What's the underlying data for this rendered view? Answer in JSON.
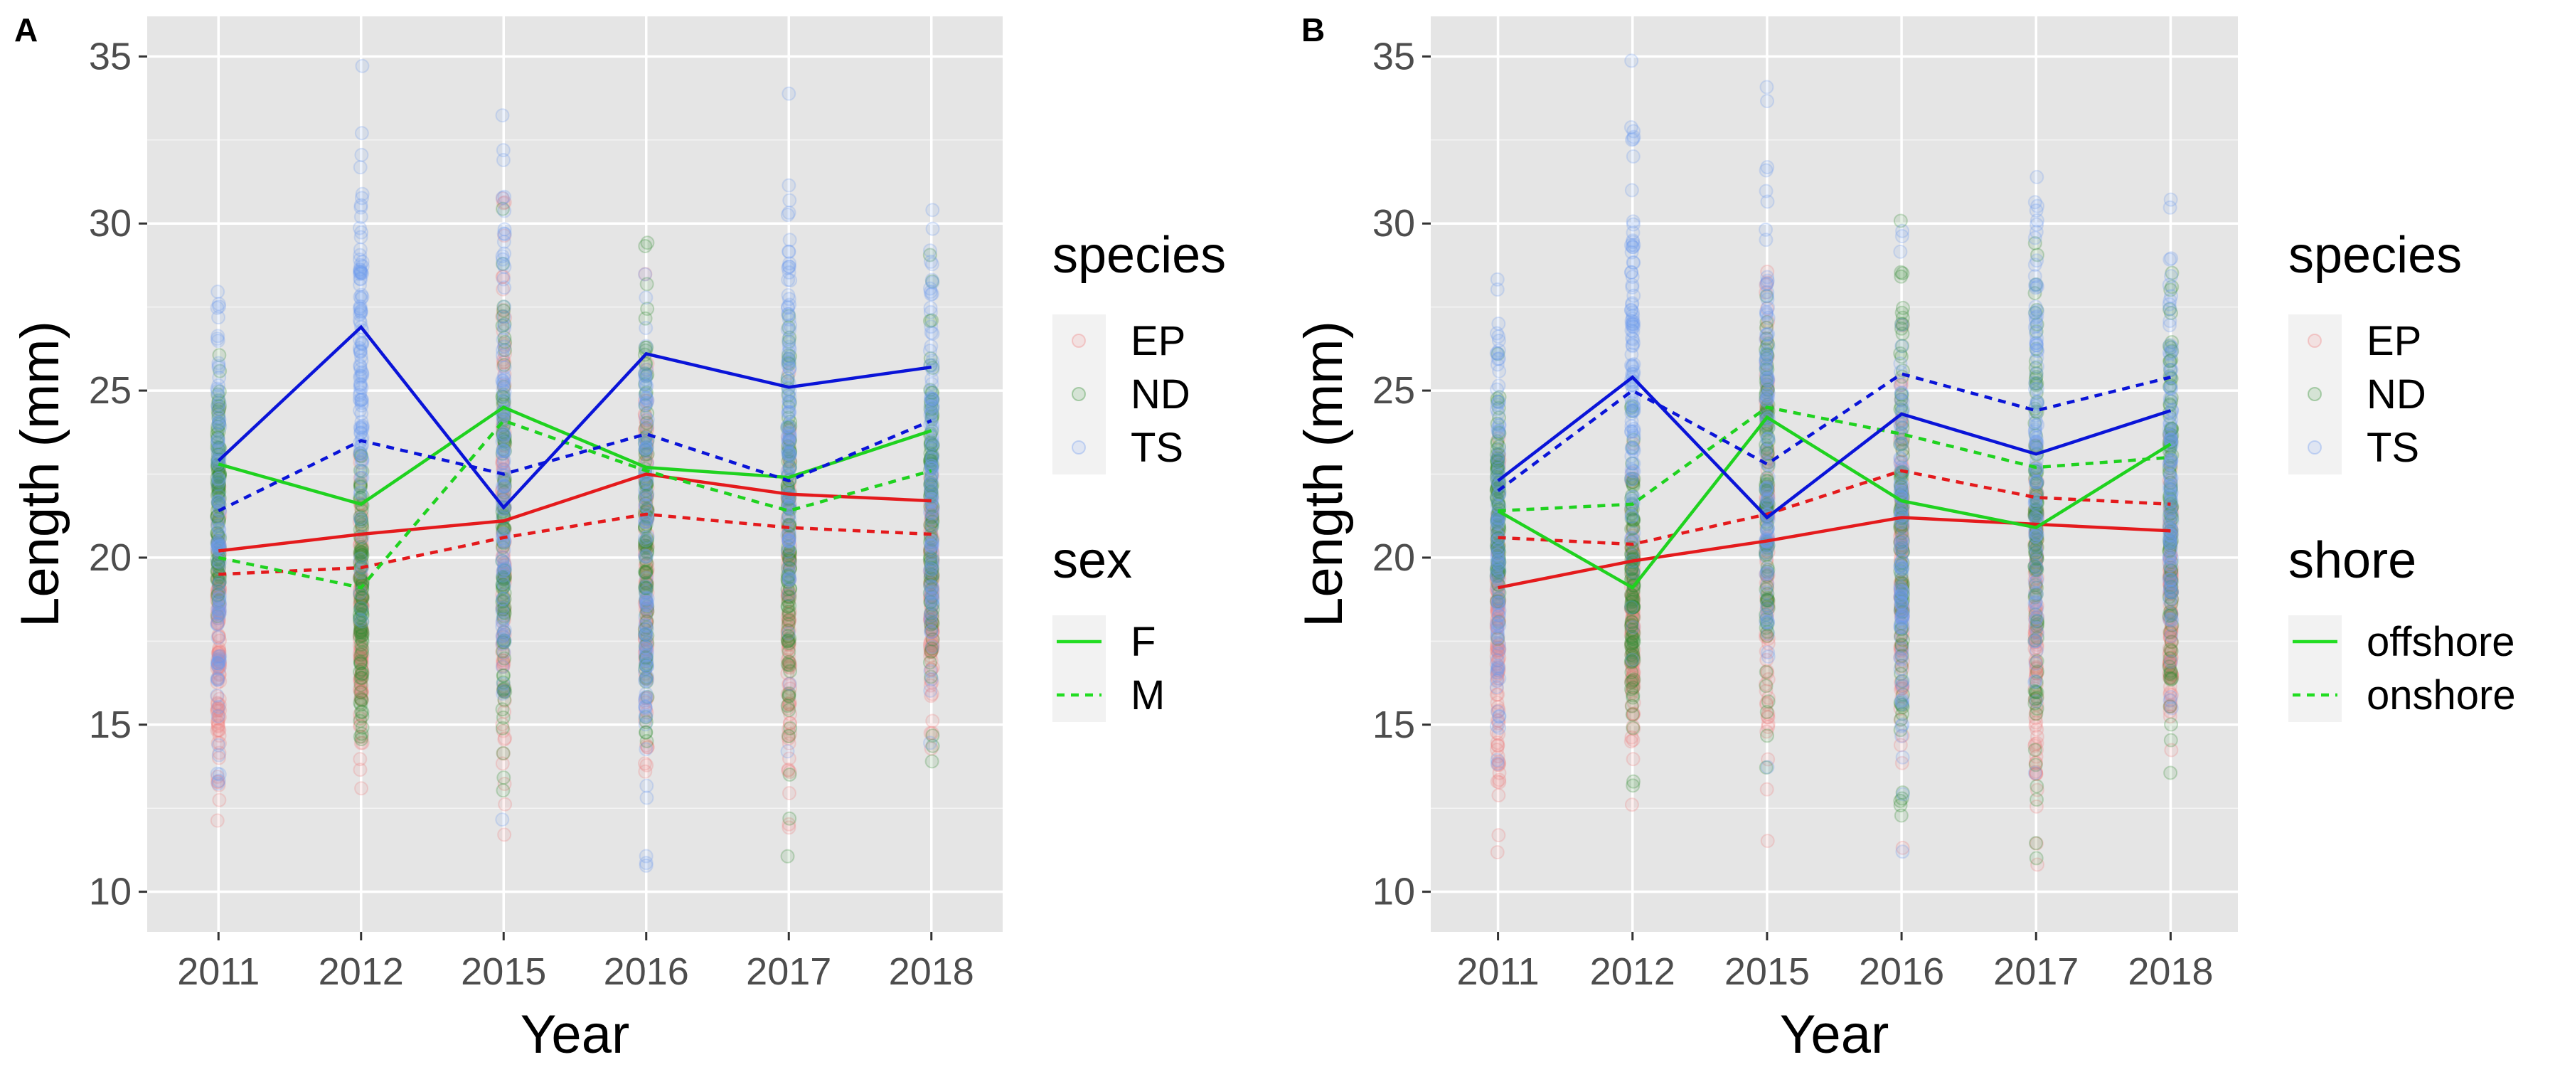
{
  "figure": {
    "panels": [
      "A",
      "B"
    ]
  },
  "colors": {
    "EP": "#e41a1c",
    "ND": "#1fd21f",
    "TS": "#0a14d8",
    "EP_points": "#f08080",
    "ND_points": "#2e8b2e",
    "TS_points": "#6f9cf0",
    "panel_bg": "#e5e5e5",
    "grid": "#ffffff",
    "legend_line": "#22dd22"
  },
  "chart_data": [
    {
      "type": "line",
      "panel_label": "A",
      "xlabel": "Year",
      "ylabel": "Length (mm)",
      "categories": [
        "2011",
        "2012",
        "2015",
        "2016",
        "2017",
        "2018"
      ],
      "ylim": [
        8.8,
        36.2
      ],
      "yticks": [
        10,
        15,
        20,
        25,
        30,
        35
      ],
      "ytick_labels": [
        "10",
        "15",
        "20",
        "25",
        "30",
        "35"
      ],
      "grid": true,
      "legends": [
        {
          "title": "species",
          "keys": [
            "EP",
            "ND",
            "TS"
          ],
          "style": "points"
        },
        {
          "title": "sex",
          "keys": [
            "F",
            "M"
          ],
          "style": "lines"
        }
      ],
      "series": [
        {
          "species": "EP",
          "group": "F",
          "linetype": "solid",
          "values": [
            20.2,
            20.7,
            21.1,
            22.5,
            21.9,
            21.7
          ]
        },
        {
          "species": "EP",
          "group": "M",
          "linetype": "dashed",
          "values": [
            19.5,
            19.7,
            20.6,
            21.3,
            20.9,
            20.7
          ]
        },
        {
          "species": "ND",
          "group": "F",
          "linetype": "solid",
          "values": [
            22.8,
            21.6,
            24.5,
            22.7,
            22.4,
            23.8
          ]
        },
        {
          "species": "ND",
          "group": "M",
          "linetype": "dashed",
          "values": [
            20.0,
            19.1,
            24.1,
            22.6,
            21.4,
            22.6
          ]
        },
        {
          "species": "TS",
          "group": "F",
          "linetype": "solid",
          "values": [
            22.9,
            26.9,
            21.5,
            26.1,
            25.1,
            25.7
          ]
        },
        {
          "species": "TS",
          "group": "M",
          "linetype": "dashed",
          "values": [
            21.4,
            23.5,
            22.5,
            23.7,
            22.3,
            24.1
          ]
        }
      ],
      "point_ranges": {
        "EP": [
          [
            10.5,
            24.5
          ],
          [
            12.5,
            23.5
          ],
          [
            10.0,
            32.0
          ],
          [
            11.0,
            28.5
          ],
          [
            10.5,
            26.5
          ],
          [
            13.0,
            24.0
          ]
        ],
        "ND": [
          [
            16.5,
            26.5
          ],
          [
            13.0,
            25.0
          ],
          [
            12.5,
            30.5
          ],
          [
            11.5,
            31.0
          ],
          [
            10.5,
            31.0
          ],
          [
            13.0,
            30.0
          ]
        ],
        "TS": [
          [
            11.0,
            31.5
          ],
          [
            16.5,
            35.0
          ],
          [
            12.0,
            35.0
          ],
          [
            10.2,
            30.5
          ],
          [
            12.5,
            34.5
          ],
          [
            13.5,
            32.0
          ]
        ]
      }
    },
    {
      "type": "line",
      "panel_label": "B",
      "xlabel": "Year",
      "ylabel": "Length (mm)",
      "categories": [
        "2011",
        "2012",
        "2015",
        "2016",
        "2017",
        "2018"
      ],
      "ylim": [
        8.8,
        36.2
      ],
      "yticks": [
        10,
        15,
        20,
        25,
        30,
        35
      ],
      "ytick_labels": [
        "10",
        "15",
        "20",
        "25",
        "30",
        "35"
      ],
      "grid": true,
      "legends": [
        {
          "title": "species",
          "keys": [
            "EP",
            "ND",
            "TS"
          ],
          "style": "points"
        },
        {
          "title": "shore",
          "keys": [
            "offshore",
            "onshore"
          ],
          "style": "lines"
        }
      ],
      "series": [
        {
          "species": "EP",
          "group": "offshore",
          "linetype": "solid",
          "values": [
            19.1,
            19.9,
            20.5,
            21.2,
            21.0,
            20.8
          ]
        },
        {
          "species": "EP",
          "group": "onshore",
          "linetype": "dashed",
          "values": [
            20.6,
            20.4,
            21.3,
            22.6,
            21.8,
            21.6
          ]
        },
        {
          "species": "ND",
          "group": "offshore",
          "linetype": "solid",
          "values": [
            21.4,
            19.1,
            24.2,
            21.7,
            20.9,
            23.4
          ]
        },
        {
          "species": "ND",
          "group": "onshore",
          "linetype": "dashed",
          "values": [
            21.4,
            21.6,
            24.5,
            23.7,
            22.7,
            23.0
          ]
        },
        {
          "species": "TS",
          "group": "offshore",
          "linetype": "solid",
          "values": [
            22.3,
            25.4,
            21.2,
            24.3,
            23.1,
            24.4
          ]
        },
        {
          "species": "TS",
          "group": "onshore",
          "linetype": "dashed",
          "values": [
            22.0,
            25.0,
            22.8,
            25.5,
            24.4,
            25.4
          ]
        }
      ],
      "point_ranges": {
        "EP": [
          [
            10.5,
            24.5
          ],
          [
            12.5,
            23.5
          ],
          [
            10.0,
            32.0
          ],
          [
            11.0,
            28.5
          ],
          [
            10.5,
            26.5
          ],
          [
            13.0,
            24.0
          ]
        ],
        "ND": [
          [
            16.5,
            26.5
          ],
          [
            13.0,
            25.0
          ],
          [
            12.5,
            30.5
          ],
          [
            11.5,
            31.0
          ],
          [
            10.5,
            31.0
          ],
          [
            13.0,
            30.0
          ]
        ],
        "TS": [
          [
            11.0,
            31.5
          ],
          [
            16.5,
            35.0
          ],
          [
            12.0,
            35.0
          ],
          [
            10.2,
            30.5
          ],
          [
            12.5,
            34.5
          ],
          [
            13.5,
            32.0
          ]
        ]
      }
    }
  ]
}
